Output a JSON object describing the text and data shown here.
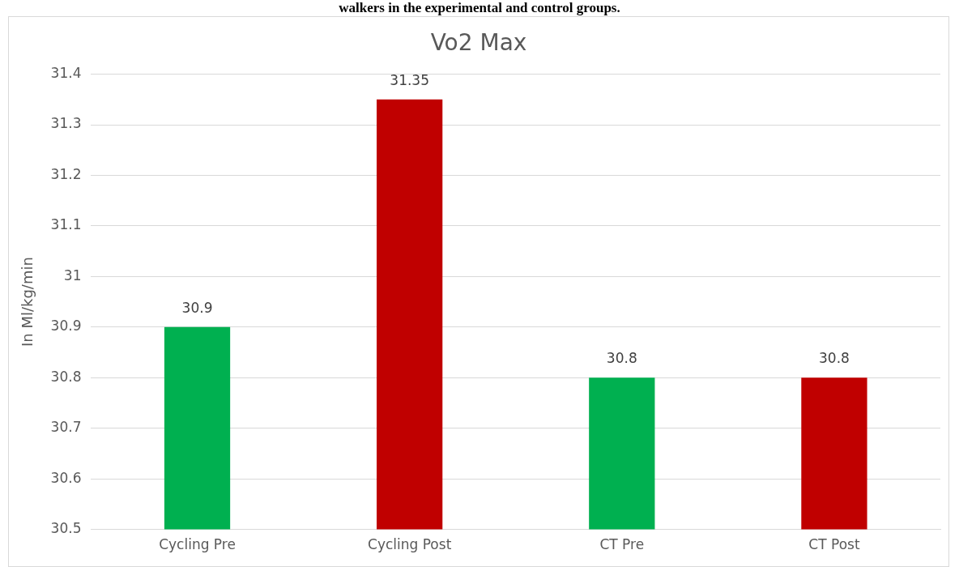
{
  "chart_data": {
    "type": "bar",
    "title": "Vo2 Max",
    "ylabel": "In Ml/kg/min",
    "annotations": [
      "walkers in the experimental and control groups."
    ],
    "categories": [
      "Cycling Pre",
      "Cycling Post",
      "CT Pre",
      "CT Post"
    ],
    "values": [
      30.9,
      31.35,
      30.8,
      30.8
    ],
    "colors": [
      "#00b050",
      "#c00000",
      "#00b050",
      "#c00000"
    ],
    "ylim": [
      30.5,
      31.4
    ],
    "yticks": [
      30.5,
      30.6,
      30.7,
      30.8,
      30.9,
      31,
      31.1,
      31.2,
      31.3,
      31.4
    ],
    "grid": "y",
    "data_labels": true
  }
}
